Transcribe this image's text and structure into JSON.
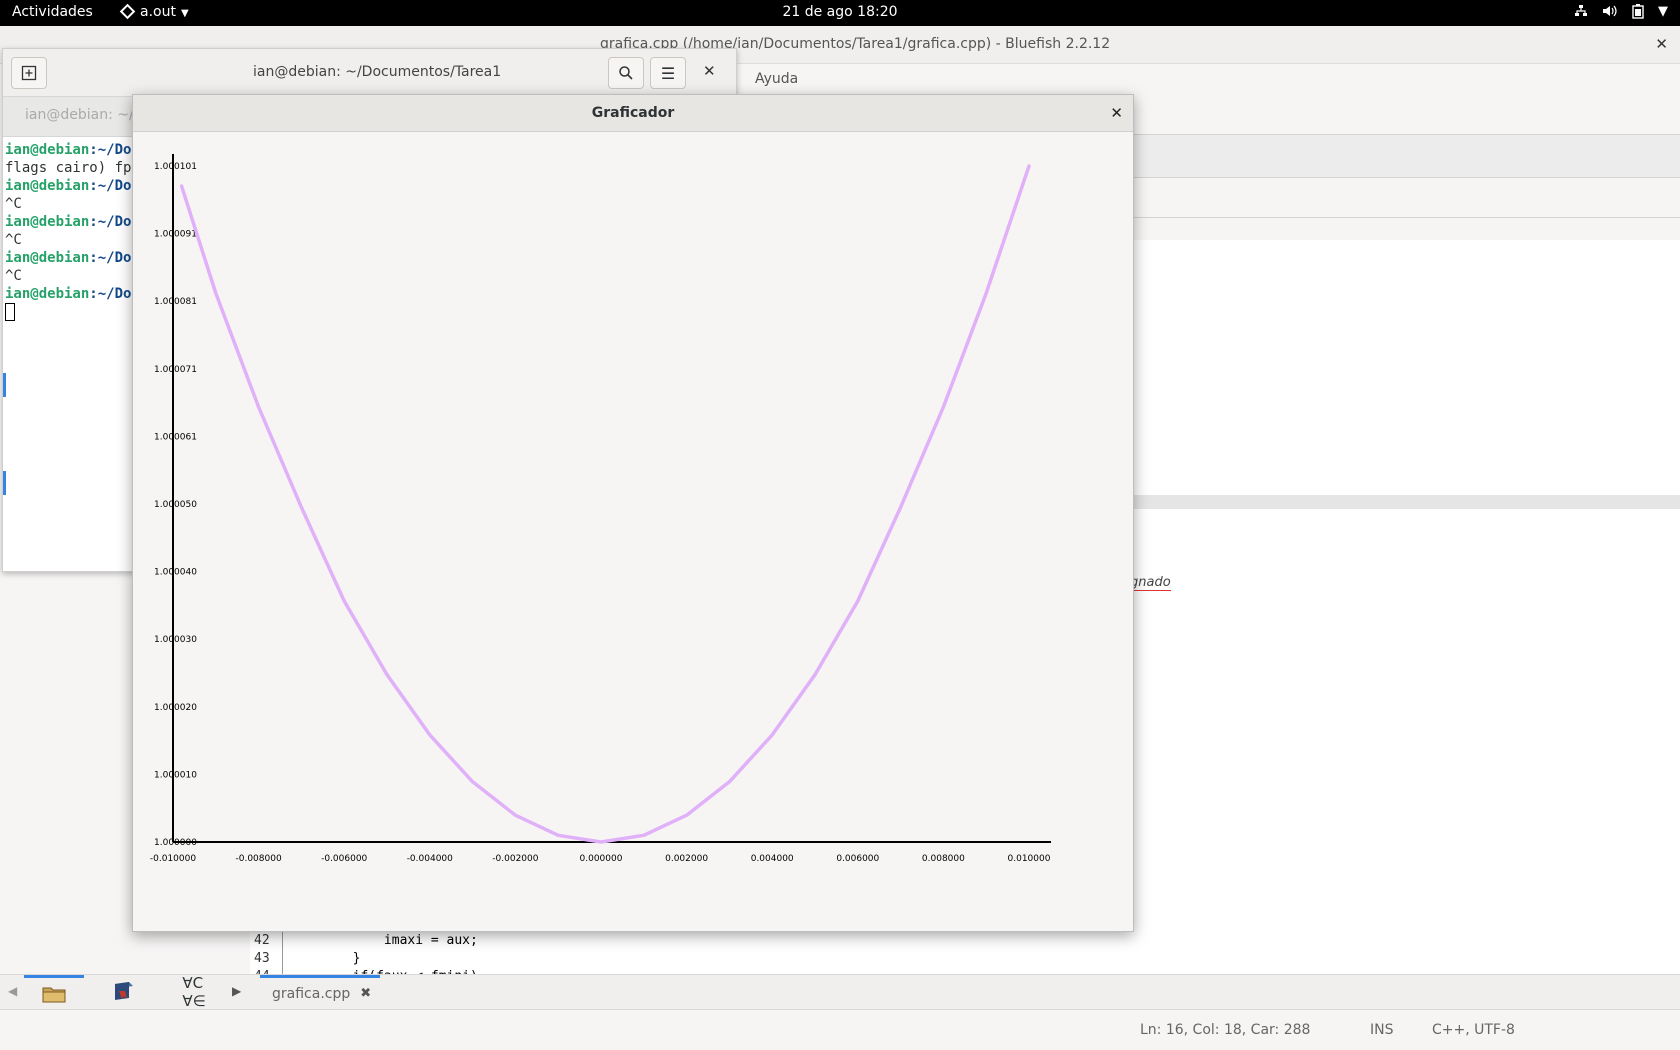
{
  "topbar": {
    "activities": "Actividades",
    "app_name": "a.out",
    "clock": "21 de ago  18:20",
    "tray_icons": [
      "network-icon",
      "volume-icon",
      "battery-icon",
      "chevron-down-icon"
    ]
  },
  "bluefish": {
    "title": "grafica.cpp (/home/ian/Documentos/Tarea1/grafica.cpp) - Bluefish 2.2.12",
    "menu_help": "Ayuda",
    "partial_text": "gnado",
    "code_lines": [
      {
        "num": "42",
        "text": "            imaxi = aux;"
      },
      {
        "num": "43",
        "text": "        }"
      },
      {
        "num": "44",
        "text": "        if(faux < fmini)"
      }
    ],
    "sidepanel_tabs": [
      "folder-icon",
      "bookmarks-icon",
      "charmap-icon"
    ],
    "doc_tab": "grafica.cpp",
    "status": {
      "position": "Ln: 16, Col: 18, Car: 288",
      "mode": "INS",
      "language": "C++, UTF-8"
    }
  },
  "terminal": {
    "title": "ian@debian: ~/Documentos/Tarea1",
    "tab_label": "ian@debian: ~/Documentos/Tarea1",
    "lines": [
      {
        "prompt": "ian@debian",
        "path": ":~/Do",
        "text": ""
      },
      {
        "prompt": "",
        "path": "",
        "text": "flags cairo) fp"
      },
      {
        "prompt": "ian@debian",
        "path": ":~/Do",
        "text": ""
      },
      {
        "prompt": "",
        "path": "",
        "text": "^C"
      },
      {
        "prompt": "ian@debian",
        "path": ":~/Do",
        "text": ""
      },
      {
        "prompt": "",
        "path": "",
        "text": "^C"
      },
      {
        "prompt": "ian@debian",
        "path": ":~/Do",
        "text": ""
      },
      {
        "prompt": "",
        "path": "",
        "text": "^C"
      },
      {
        "prompt": "ian@debian",
        "path": ":~/Do",
        "text": ""
      }
    ]
  },
  "graficador": {
    "title": "Graficador",
    "curve_color": "#e0b0f8",
    "chart_data": {
      "type": "line",
      "title": "",
      "xlabel": "",
      "ylabel": "",
      "xlim": [
        -0.01,
        0.01
      ],
      "ylim": [
        1.0,
        1.000101
      ],
      "x_ticks": [
        "-0.010000",
        "-0.008000",
        "-0.006000",
        "-0.004000",
        "-0.002000",
        "0.000000",
        "0.002000",
        "0.004000",
        "0.006000",
        "0.008000",
        "0.010000"
      ],
      "y_ticks": [
        "1.000101",
        "1.000091",
        "1.000081",
        "1.000071",
        "1.000061",
        "1.000050",
        "1.000040",
        "1.000030",
        "1.000020",
        "1.000010",
        "1.000000"
      ],
      "series": [
        {
          "x": [
            -0.0098,
            -0.009,
            -0.008,
            -0.007,
            -0.006,
            -0.005,
            -0.004,
            -0.003,
            -0.002,
            -0.001,
            0.0,
            0.001,
            0.002,
            0.003,
            0.004,
            0.005,
            0.006,
            0.007,
            0.008,
            0.009,
            0.01
          ],
          "y": [
            1.000098,
            1.000082,
            1.000065,
            1.00005,
            1.000036,
            1.000025,
            1.000016,
            1.000009,
            1.000004,
            1.000001,
            1.0,
            1.000001,
            1.000004,
            1.000009,
            1.000016,
            1.000025,
            1.000036,
            1.00005,
            1.000065,
            1.000082,
            1.000101
          ]
        }
      ]
    }
  }
}
